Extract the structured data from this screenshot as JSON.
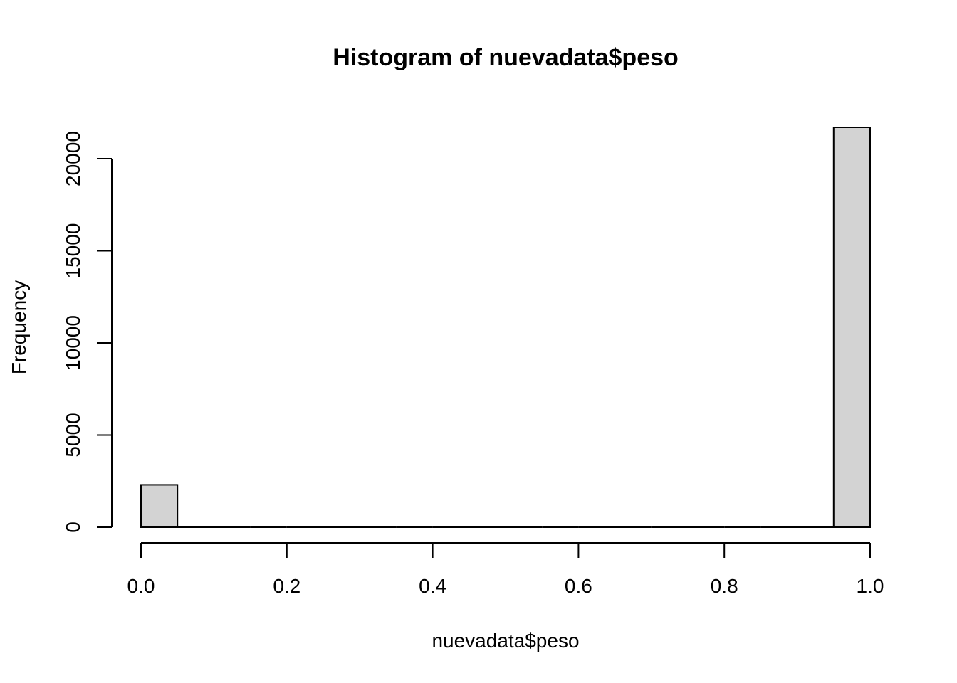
{
  "chart_data": {
    "type": "bar",
    "title": "Histogram of nuevadata$peso",
    "xlabel": "nuevadata$peso",
    "ylabel": "Frequency",
    "xlim": [
      0,
      1
    ],
    "ylim": [
      0,
      21700
    ],
    "x_ticks": [
      "0.0",
      "0.2",
      "0.4",
      "0.6",
      "0.8",
      "1.0"
    ],
    "y_ticks": [
      "0",
      "5000",
      "10000",
      "15000",
      "20000"
    ],
    "bar_color": "#d3d3d3",
    "grid": false,
    "bins": [
      {
        "start": 0.0,
        "end": 0.05,
        "count": 2300
      },
      {
        "start": 0.05,
        "end": 0.1,
        "count": 0
      },
      {
        "start": 0.1,
        "end": 0.15,
        "count": 0
      },
      {
        "start": 0.15,
        "end": 0.2,
        "count": 0
      },
      {
        "start": 0.2,
        "end": 0.25,
        "count": 0
      },
      {
        "start": 0.25,
        "end": 0.3,
        "count": 0
      },
      {
        "start": 0.3,
        "end": 0.35,
        "count": 0
      },
      {
        "start": 0.35,
        "end": 0.4,
        "count": 0
      },
      {
        "start": 0.4,
        "end": 0.45,
        "count": 0
      },
      {
        "start": 0.45,
        "end": 0.5,
        "count": 0
      },
      {
        "start": 0.5,
        "end": 0.55,
        "count": 0
      },
      {
        "start": 0.55,
        "end": 0.6,
        "count": 0
      },
      {
        "start": 0.6,
        "end": 0.65,
        "count": 0
      },
      {
        "start": 0.65,
        "end": 0.7,
        "count": 0
      },
      {
        "start": 0.7,
        "end": 0.75,
        "count": 0
      },
      {
        "start": 0.75,
        "end": 0.8,
        "count": 0
      },
      {
        "start": 0.8,
        "end": 0.85,
        "count": 0
      },
      {
        "start": 0.85,
        "end": 0.9,
        "count": 0
      },
      {
        "start": 0.9,
        "end": 0.95,
        "count": 0
      },
      {
        "start": 0.95,
        "end": 1.0,
        "count": 21700
      }
    ]
  }
}
